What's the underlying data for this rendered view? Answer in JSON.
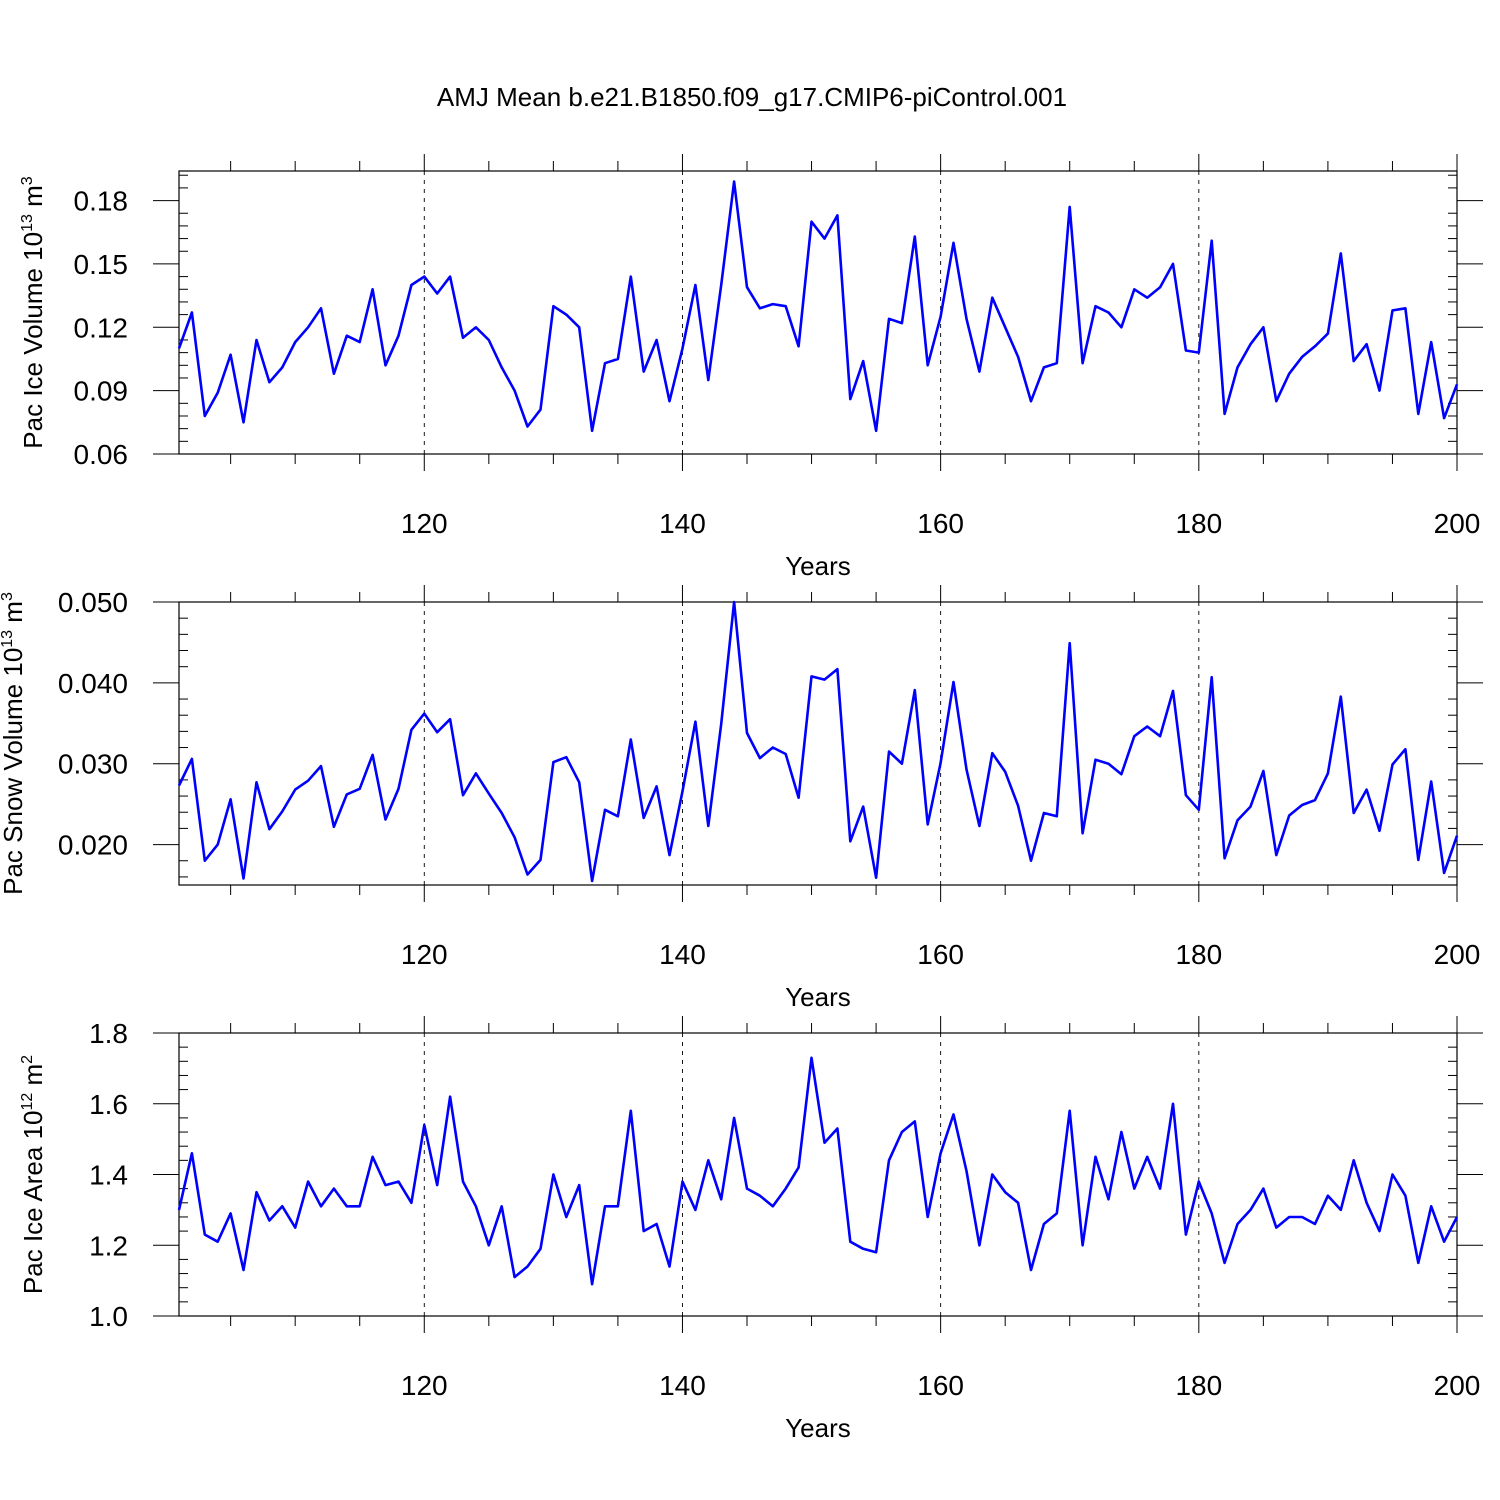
{
  "title": "AMJ Mean b.e21.B1850.f09_g17.CMIP6-piControl.001",
  "chart_data": [
    {
      "type": "line",
      "title": "AMJ Mean b.e21.B1850.f09_g17.CMIP6-piControl.001",
      "xlabel": "Years",
      "ylabel": "Pac Ice Volume 10",
      "ylabel_exp": "13",
      "ylabel_unit": " m",
      "ylabel_unit_exp": "3",
      "xlim": [
        101,
        200
      ],
      "ylim": [
        0.06,
        0.194
      ],
      "xticks": [
        120,
        140,
        160,
        180,
        200
      ],
      "xtick_labels": [
        "120",
        "140",
        "160",
        "180",
        "200"
      ],
      "yticks": [
        0.06,
        0.09,
        0.12,
        0.15,
        0.18
      ],
      "ytick_labels": [
        "0.06",
        "0.09",
        "0.12",
        "0.15",
        "0.18"
      ],
      "grid": "vertical dashed at major x ticks",
      "series": [
        {
          "name": "Pac Ice Volume",
          "color": "#0000ff",
          "x_start": 101,
          "values": [
            0.11,
            0.127,
            0.078,
            0.089,
            0.107,
            0.075,
            0.114,
            0.094,
            0.101,
            0.113,
            0.12,
            0.129,
            0.098,
            0.116,
            0.113,
            0.138,
            0.102,
            0.116,
            0.14,
            0.144,
            0.136,
            0.144,
            0.115,
            0.12,
            0.114,
            0.101,
            0.09,
            0.073,
            0.081,
            0.13,
            0.126,
            0.12,
            0.071,
            0.103,
            0.105,
            0.144,
            0.099,
            0.114,
            0.085,
            0.11,
            0.14,
            0.095,
            0.14,
            0.189,
            0.139,
            0.129,
            0.131,
            0.13,
            0.111,
            0.17,
            0.162,
            0.173,
            0.086,
            0.104,
            0.071,
            0.124,
            0.122,
            0.163,
            0.102,
            0.125,
            0.16,
            0.124,
            0.099,
            0.134,
            0.12,
            0.106,
            0.085,
            0.101,
            0.103,
            0.177,
            0.103,
            0.13,
            0.127,
            0.12,
            0.138,
            0.134,
            0.139,
            0.15,
            0.109,
            0.108,
            0.161,
            0.079,
            0.101,
            0.112,
            0.12,
            0.085,
            0.098,
            0.106,
            0.111,
            0.117,
            0.155,
            0.104,
            0.112,
            0.09,
            0.128,
            0.129,
            0.079,
            0.113,
            0.077,
            0.093
          ]
        }
      ]
    },
    {
      "type": "line",
      "xlabel": "Years",
      "ylabel": "Pac Snow Volume 10",
      "ylabel_exp": "13",
      "ylabel_unit": " m",
      "ylabel_unit_exp": "3",
      "xlim": [
        101,
        200
      ],
      "ylim": [
        0.015,
        0.05
      ],
      "xticks": [
        120,
        140,
        160,
        180,
        200
      ],
      "xtick_labels": [
        "120",
        "140",
        "160",
        "180",
        "200"
      ],
      "yticks": [
        0.02,
        0.03,
        0.04,
        0.05
      ],
      "ytick_labels": [
        "0.020",
        "0.030",
        "0.040",
        "0.050"
      ],
      "grid": "vertical dashed at major x ticks",
      "series": [
        {
          "name": "Pac Snow Volume",
          "color": "#0000ff",
          "x_start": 101,
          "values": [
            0.0273,
            0.0306,
            0.018,
            0.02,
            0.0256,
            0.0158,
            0.0277,
            0.0219,
            0.0241,
            0.0268,
            0.0279,
            0.0297,
            0.0222,
            0.0262,
            0.0269,
            0.0311,
            0.0231,
            0.0269,
            0.0342,
            0.0362,
            0.0339,
            0.0355,
            0.0261,
            0.0288,
            0.0263,
            0.0239,
            0.0209,
            0.0163,
            0.0181,
            0.0302,
            0.0308,
            0.0277,
            0.0155,
            0.0243,
            0.0235,
            0.033,
            0.0233,
            0.0272,
            0.0187,
            0.0266,
            0.0352,
            0.0223,
            0.0349,
            0.05,
            0.0338,
            0.0307,
            0.032,
            0.0312,
            0.0258,
            0.0408,
            0.0404,
            0.0417,
            0.0204,
            0.0247,
            0.0159,
            0.0315,
            0.03,
            0.0391,
            0.0225,
            0.0301,
            0.0401,
            0.0293,
            0.0223,
            0.0313,
            0.029,
            0.0248,
            0.018,
            0.0239,
            0.0235,
            0.0449,
            0.0214,
            0.0305,
            0.03,
            0.0287,
            0.0334,
            0.0346,
            0.0334,
            0.039,
            0.0261,
            0.0243,
            0.0407,
            0.0183,
            0.023,
            0.0247,
            0.0291,
            0.0187,
            0.0236,
            0.0249,
            0.0255,
            0.0288,
            0.0383,
            0.0239,
            0.0268,
            0.0217,
            0.0299,
            0.0318,
            0.0181,
            0.0278,
            0.0165,
            0.0211
          ]
        }
      ]
    },
    {
      "type": "line",
      "xlabel": "Years",
      "ylabel": "Pac Ice Area 10",
      "ylabel_exp": "12",
      "ylabel_unit": " m",
      "ylabel_unit_exp": "2",
      "xlim": [
        101,
        200
      ],
      "ylim": [
        1.0,
        1.8
      ],
      "xticks": [
        120,
        140,
        160,
        180,
        200
      ],
      "xtick_labels": [
        "120",
        "140",
        "160",
        "180",
        "200"
      ],
      "yticks": [
        1.0,
        1.2,
        1.4,
        1.6,
        1.8
      ],
      "ytick_labels": [
        "1.0",
        "1.2",
        "1.4",
        "1.6",
        "1.8"
      ],
      "grid": "vertical dashed at major x ticks",
      "series": [
        {
          "name": "Pac Ice Area",
          "color": "#0000ff",
          "x_start": 101,
          "values": [
            1.3,
            1.46,
            1.23,
            1.21,
            1.29,
            1.13,
            1.35,
            1.27,
            1.31,
            1.25,
            1.38,
            1.31,
            1.36,
            1.31,
            1.31,
            1.45,
            1.37,
            1.38,
            1.32,
            1.54,
            1.37,
            1.62,
            1.38,
            1.31,
            1.2,
            1.31,
            1.11,
            1.14,
            1.19,
            1.4,
            1.28,
            1.37,
            1.09,
            1.31,
            1.31,
            1.58,
            1.24,
            1.26,
            1.14,
            1.38,
            1.3,
            1.44,
            1.33,
            1.56,
            1.36,
            1.34,
            1.31,
            1.36,
            1.42,
            1.73,
            1.49,
            1.53,
            1.21,
            1.19,
            1.18,
            1.44,
            1.52,
            1.55,
            1.28,
            1.46,
            1.57,
            1.41,
            1.2,
            1.4,
            1.35,
            1.32,
            1.13,
            1.26,
            1.29,
            1.58,
            1.2,
            1.45,
            1.33,
            1.52,
            1.36,
            1.45,
            1.36,
            1.6,
            1.23,
            1.38,
            1.29,
            1.15,
            1.26,
            1.3,
            1.36,
            1.25,
            1.28,
            1.28,
            1.26,
            1.34,
            1.3,
            1.44,
            1.32,
            1.24,
            1.4,
            1.34,
            1.15,
            1.31,
            1.21,
            1.28
          ]
        }
      ]
    }
  ]
}
